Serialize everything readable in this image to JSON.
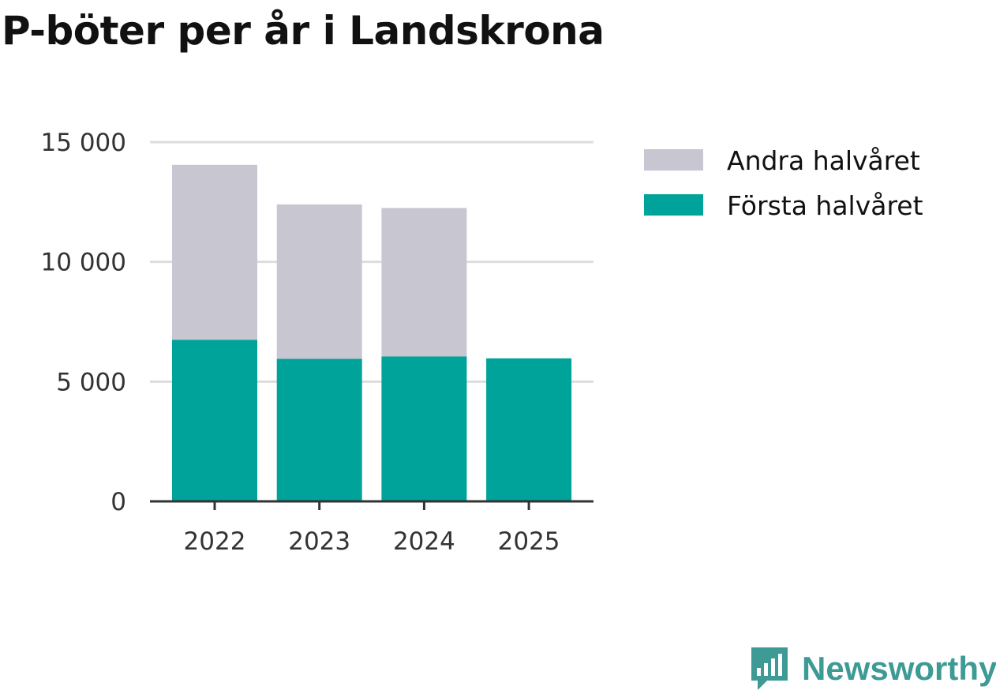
{
  "chart_data": {
    "type": "bar",
    "stacked": true,
    "title": "P-böter per år i Landskrona",
    "categories": [
      "2022",
      "2023",
      "2024",
      "2025"
    ],
    "series": [
      {
        "name": "Första halvåret",
        "color": "#00a39a",
        "values": [
          6750,
          5950,
          6050,
          5970
        ]
      },
      {
        "name": "Andra halvåret",
        "color": "#c8c7d1",
        "values": [
          7300,
          6450,
          6200,
          0
        ]
      }
    ],
    "legend_order": [
      "Andra halvåret",
      "Första halvåret"
    ],
    "ylim": [
      0,
      15000
    ],
    "yticks": [
      0,
      5000,
      10000,
      15000
    ],
    "ytick_labels": [
      "0",
      "5 000",
      "10 000",
      "15 000"
    ],
    "xlabel": "",
    "ylabel": "",
    "grid": true,
    "legend_position": "right"
  },
  "brand": {
    "name": "Newsworthy",
    "icon": "newsworthy-logo-icon",
    "color": "#3e9a94"
  }
}
